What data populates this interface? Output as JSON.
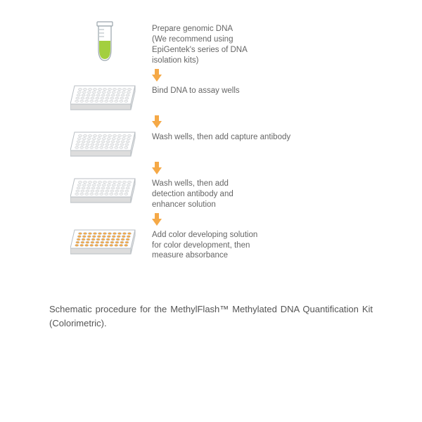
{
  "colors": {
    "text": "#666666",
    "caption_text": "#555555",
    "arrow_fill": "#f5a947",
    "tube_outline": "#9aa5ac",
    "tube_liquid": "#a3cf3e",
    "plate_outline": "#b8bec3",
    "plate_fill_light": "#f2f2f2",
    "plate_fill_orange": "#f5a947",
    "plate_side": "#dddddd"
  },
  "steps": [
    {
      "text": "Prepare genomic DNA\n(We recommend using\nEpiGentek's series of DNA\nisolation kits)",
      "icon": "tube",
      "plate_color": null
    },
    {
      "text": "Bind DNA to assay wells",
      "icon": "plate",
      "plate_color": "#f2f2f2"
    },
    {
      "text": "Wash wells, then add capture antibody",
      "icon": "plate",
      "plate_color": "#f2f2f2"
    },
    {
      "text": "Wash wells, then add\ndetection antibody and\nenhancer solution",
      "icon": "plate",
      "plate_color": "#f2f2f2"
    },
    {
      "text": "Add color developing solution\nfor color development, then\nmeasure absorbance",
      "icon": "plate",
      "plate_color": "#f5a947"
    }
  ],
  "caption": "Schematic procedure for the MethylFlash™ Methylated DNA Quantification Kit (Colorimetric)."
}
